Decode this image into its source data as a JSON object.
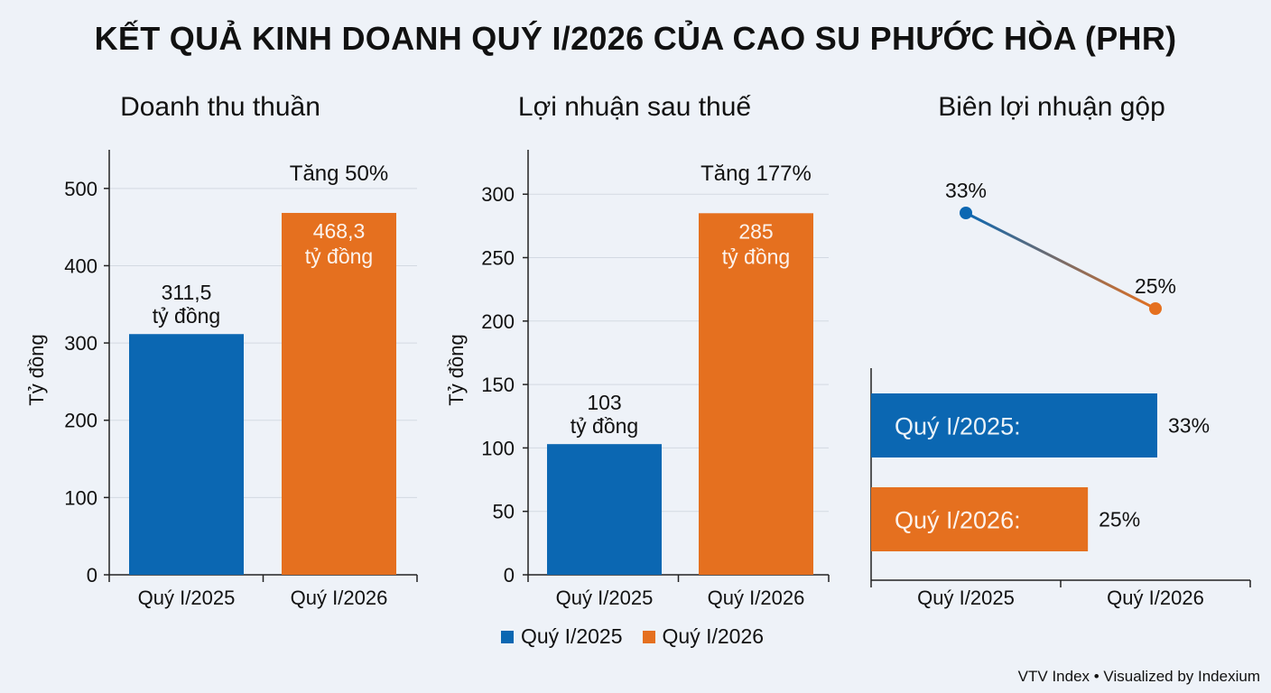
{
  "title": "KẾT QUẢ KINH DOANH QUÝ I/2026 CỦA CAO SU PHƯỚC HÒA (PHR)",
  "colors": {
    "q2025": "#0b67b2",
    "q2026": "#e5701f"
  },
  "legend": [
    "Quý I/2025",
    "Quý I/2026"
  ],
  "source": "VTV Index • Visualized by Indexium",
  "chart_data": [
    {
      "type": "bar",
      "title": "Doanh thu thuần",
      "ylabel": "Tỷ đồng",
      "categories": [
        "Quý I/2025",
        "Quý I/2026"
      ],
      "values": [
        311.5,
        468.3
      ],
      "labels": [
        [
          "311,5",
          "tỷ đồng"
        ],
        [
          "468,3",
          "tỷ đồng"
        ]
      ],
      "annotation": "Tăng 50%",
      "yticks": [
        0,
        100,
        200,
        300,
        400,
        500
      ],
      "ylim": [
        0,
        550
      ],
      "grid": true
    },
    {
      "type": "bar",
      "title": "Lợi nhuận sau thuế",
      "ylabel": "Tỷ đồng",
      "categories": [
        "Quý I/2025",
        "Quý I/2026"
      ],
      "values": [
        103,
        285
      ],
      "labels": [
        [
          "103",
          "tỷ đồng"
        ],
        [
          "285",
          "tỷ đồng"
        ]
      ],
      "annotation": "Tăng 177%",
      "yticks": [
        0,
        50,
        100,
        150,
        200,
        250,
        300
      ],
      "ylim": [
        0,
        335
      ],
      "grid": true
    },
    {
      "type": "line",
      "title": "Biên lợi nhuận gộp",
      "categories": [
        "Quý I/2025",
        "Quý I/2026"
      ],
      "values": [
        33,
        25
      ],
      "point_labels": [
        "33%",
        "25%"
      ],
      "bars": [
        {
          "label": "Quý I/2025:",
          "value": 33,
          "value_label": "33%"
        },
        {
          "label": "Quý I/2026:",
          "value": 25,
          "value_label": "25%"
        }
      ]
    }
  ]
}
